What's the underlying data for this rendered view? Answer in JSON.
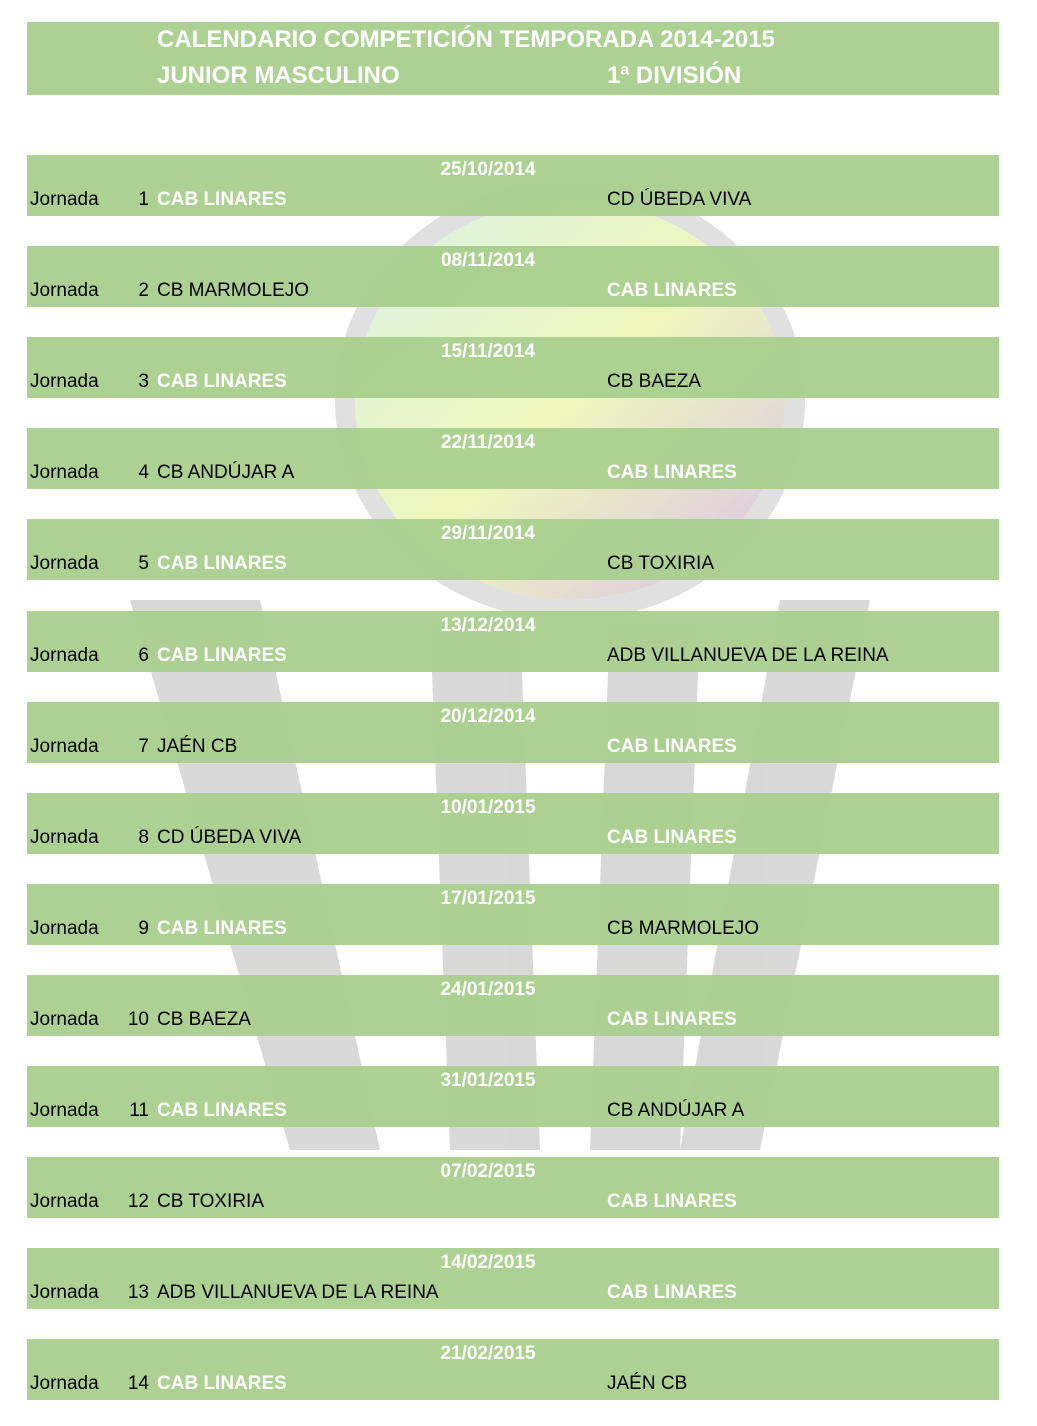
{
  "header": {
    "title": "CALENDARIO COMPETICIÓN TEMPORADA 2014-2015",
    "category": "JUNIOR MASCULINO",
    "division": "1ª DIVISIÓN"
  },
  "highlight_team": "CAB LINARES",
  "colors": {
    "band": "#a9d08e",
    "highlight_text": "#ffffff"
  },
  "watermark": {
    "icon": "club-logo-watermark",
    "text": "LINARES"
  },
  "jornada_label": "Jornada",
  "matches": [
    {
      "n": "1",
      "date": "25/10/2014",
      "home": "CAB LINARES",
      "away": "CD ÚBEDA VIVA"
    },
    {
      "n": "2",
      "date": "08/11/2014",
      "home": "CB MARMOLEJO",
      "away": "CAB LINARES"
    },
    {
      "n": "3",
      "date": "15/11/2014",
      "home": "CAB LINARES",
      "away": "CB BAEZA"
    },
    {
      "n": "4",
      "date": "22/11/2014",
      "home": "CB ANDÚJAR A",
      "away": "CAB LINARES"
    },
    {
      "n": "5",
      "date": "29/11/2014",
      "home": "CAB LINARES",
      "away": "CB TOXIRIA"
    },
    {
      "n": "6",
      "date": "13/12/2014",
      "home": "CAB LINARES",
      "away": "ADB VILLANUEVA DE LA REINA"
    },
    {
      "n": "7",
      "date": "20/12/2014",
      "home": "JAÉN CB",
      "away": "CAB LINARES"
    },
    {
      "n": "8",
      "date": "10/01/2015",
      "home": "CD ÚBEDA VIVA",
      "away": "CAB LINARES"
    },
    {
      "n": "9",
      "date": "17/01/2015",
      "home": "CAB LINARES",
      "away": "CB MARMOLEJO"
    },
    {
      "n": "10",
      "date": "24/01/2015",
      "home": "CB BAEZA",
      "away": "CAB LINARES"
    },
    {
      "n": "11",
      "date": "31/01/2015",
      "home": "CAB LINARES",
      "away": "CB ANDÚJAR A"
    },
    {
      "n": "12",
      "date": "07/02/2015",
      "home": "CB TOXIRIA",
      "away": "CAB LINARES"
    },
    {
      "n": "13",
      "date": "14/02/2015",
      "home": "ADB VILLANUEVA DE LA REINA",
      "away": "CAB LINARES"
    },
    {
      "n": "14",
      "date": "21/02/2015",
      "home": "CAB LINARES",
      "away": "JAÉN CB"
    }
  ]
}
